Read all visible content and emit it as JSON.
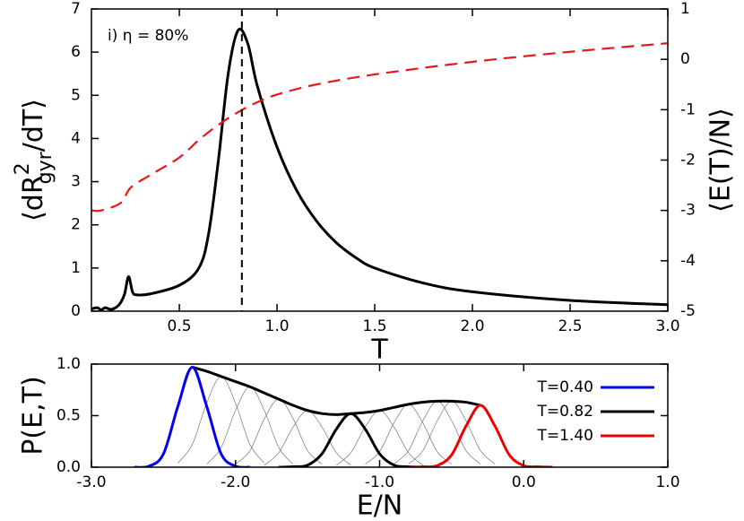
{
  "chart_data": [
    {
      "type": "line",
      "annotation": "i) η = 80%",
      "xlabel": "T",
      "ylabel_parts": [
        "⟨dR",
        "2",
        "gyr",
        "/dT⟩"
      ],
      "y2label": "⟨E(T)/N⟩",
      "xlim": [
        0.05,
        3.0
      ],
      "ylim": [
        0,
        7
      ],
      "y2lim": [
        -5,
        1
      ],
      "xticks": [
        0.5,
        {
          "value": 1,
          "label": "1.0"
        },
        1.5,
        {
          "value": 2,
          "label": "2.0"
        },
        2.5,
        {
          "value": 3,
          "label": "3.0"
        }
      ],
      "yticks": [
        0,
        1,
        2,
        3,
        4,
        5,
        6,
        7
      ],
      "y2ticks": [
        -5,
        -4,
        -3,
        -2,
        -1,
        0,
        1
      ],
      "vline": 0.82,
      "series": [
        {
          "color": "#000000",
          "x": [
            0.05,
            0.08,
            0.1,
            0.12,
            0.15,
            0.18,
            0.2,
            0.22,
            0.24,
            0.26,
            0.28,
            0.35,
            0.5,
            0.6,
            0.65,
            0.7,
            0.75,
            0.8,
            0.85,
            0.9,
            1.0,
            1.1,
            1.2,
            1.3,
            1.4,
            1.5,
            1.75,
            2.0,
            2.5,
            3.0
          ],
          "values": [
            0.05,
            0.08,
            0.03,
            0.08,
            0.04,
            0.1,
            0.2,
            0.4,
            0.8,
            0.45,
            0.38,
            0.4,
            0.6,
            1.0,
            1.8,
            3.5,
            5.5,
            6.5,
            6.2,
            5.2,
            3.8,
            2.8,
            2.1,
            1.6,
            1.25,
            1.0,
            0.65,
            0.45,
            0.25,
            0.15
          ]
        },
        {
          "color": "#e41a1c",
          "axis": "y2",
          "dash": true,
          "x": [
            0.05,
            0.1,
            0.2,
            0.25,
            0.35,
            0.5,
            0.6,
            0.7,
            0.8,
            0.9,
            1.0,
            1.2,
            1.5,
            2.0,
            2.5,
            3.0
          ],
          "values": [
            -3.0,
            -3.0,
            -2.85,
            -2.55,
            -2.3,
            -1.95,
            -1.6,
            -1.3,
            -1.05,
            -0.85,
            -0.7,
            -0.5,
            -0.3,
            -0.05,
            0.15,
            0.32
          ]
        }
      ]
    },
    {
      "type": "line",
      "xlabel": "E/N",
      "ylabel": "P(E,T)",
      "xlim": [
        -3,
        1
      ],
      "ylim": [
        0,
        1
      ],
      "xticks": [
        {
          "value": -3,
          "label": "-3.0"
        },
        {
          "value": -2,
          "label": "-2.0"
        },
        {
          "value": -1,
          "label": "-1.0"
        },
        {
          "value": 0,
          "label": "0.0"
        },
        {
          "value": 1,
          "label": "1.0"
        }
      ],
      "yticks": [
        {
          "value": 0,
          "label": "0.0"
        },
        0.5,
        {
          "value": 1,
          "label": "1.0"
        }
      ],
      "legend": "upper right",
      "background_curves": [
        {
          "color": "#777777",
          "x": [
            -2.4,
            -2.3,
            -2.2,
            -2.1,
            -2.0,
            -1.9,
            -1.8
          ],
          "values": [
            0.04,
            0.22,
            0.62,
            0.88,
            0.62,
            0.22,
            0.04
          ]
        },
        {
          "color": "#777777",
          "x": [
            -2.2,
            -2.1,
            -2.0,
            -1.9,
            -1.8,
            -1.7,
            -1.6
          ],
          "values": [
            0.03,
            0.19,
            0.55,
            0.78,
            0.55,
            0.19,
            0.03
          ]
        },
        {
          "color": "#777777",
          "x": [
            -2.0,
            -1.9,
            -1.8,
            -1.7,
            -1.6,
            -1.5,
            -1.4
          ],
          "values": [
            0.03,
            0.16,
            0.47,
            0.66,
            0.47,
            0.16,
            0.03
          ]
        },
        {
          "color": "#777777",
          "x": [
            -1.8,
            -1.7,
            -1.6,
            -1.5,
            -1.4,
            -1.3,
            -1.2
          ],
          "values": [
            0.02,
            0.14,
            0.39,
            0.55,
            0.39,
            0.14,
            0.02
          ]
        },
        {
          "color": "#777777",
          "x": [
            -1.3,
            -1.2,
            -1.1,
            -1.0,
            -0.9,
            -0.8,
            -0.7
          ],
          "values": [
            0.02,
            0.14,
            0.39,
            0.55,
            0.39,
            0.14,
            0.02
          ]
        },
        {
          "color": "#777777",
          "x": [
            -1.1,
            -1.0,
            -0.9,
            -0.8,
            -0.7,
            -0.6,
            -0.5
          ],
          "values": [
            0.03,
            0.15,
            0.43,
            0.61,
            0.43,
            0.15,
            0.03
          ]
        },
        {
          "color": "#777777",
          "x": [
            -0.9,
            -0.8,
            -0.7,
            -0.6,
            -0.5,
            -0.4,
            -0.3
          ],
          "values": [
            0.03,
            0.16,
            0.45,
            0.64,
            0.45,
            0.16,
            0.03
          ]
        },
        {
          "color": "#777777",
          "x": [
            -0.8,
            -0.7,
            -0.6,
            -0.5,
            -0.4,
            -0.3,
            -0.2
          ],
          "values": [
            0.03,
            0.16,
            0.45,
            0.64,
            0.45,
            0.16,
            0.03
          ]
        }
      ],
      "envelope": {
        "color": "#000000",
        "x": [
          -2.3,
          -2.2,
          -2.1,
          -2.0,
          -1.9,
          -1.8,
          -1.7,
          -1.6,
          -1.5,
          -1.4,
          -1.3,
          -1.2,
          -1.1,
          -1.0,
          -0.9,
          -0.8,
          -0.7,
          -0.6,
          -0.5,
          -0.4,
          -0.3
        ],
        "values": [
          0.97,
          0.93,
          0.88,
          0.83,
          0.78,
          0.72,
          0.66,
          0.6,
          0.55,
          0.52,
          0.51,
          0.52,
          0.53,
          0.55,
          0.58,
          0.61,
          0.63,
          0.64,
          0.64,
          0.63,
          0.6
        ]
      },
      "series": [
        {
          "name": "T=0.40",
          "color": "#0000ee",
          "x": [
            -2.7,
            -2.6,
            -2.5,
            -2.4,
            -2.3,
            -2.2,
            -2.1,
            -2.0,
            -1.9
          ],
          "values": [
            0,
            0.01,
            0.13,
            0.59,
            0.97,
            0.59,
            0.13,
            0.01,
            0
          ]
        },
        {
          "name": "T=0.82",
          "color": "#000000",
          "x": [
            -1.7,
            -1.6,
            -1.5,
            -1.4,
            -1.3,
            -1.2,
            -1.1,
            -1.0,
            -0.9,
            -0.8,
            -0.7
          ],
          "values": [
            0,
            0.004,
            0.02,
            0.13,
            0.37,
            0.52,
            0.37,
            0.13,
            0.02,
            0.004,
            0
          ]
        },
        {
          "name": "T=1.40",
          "color": "#ee0000",
          "x": [
            -0.8,
            -0.7,
            -0.6,
            -0.5,
            -0.4,
            -0.3,
            -0.2,
            -0.1,
            0.0,
            0.1,
            0.2
          ],
          "values": [
            0,
            0.004,
            0.015,
            0.12,
            0.4,
            0.6,
            0.4,
            0.12,
            0.015,
            0.004,
            0
          ]
        }
      ]
    }
  ]
}
